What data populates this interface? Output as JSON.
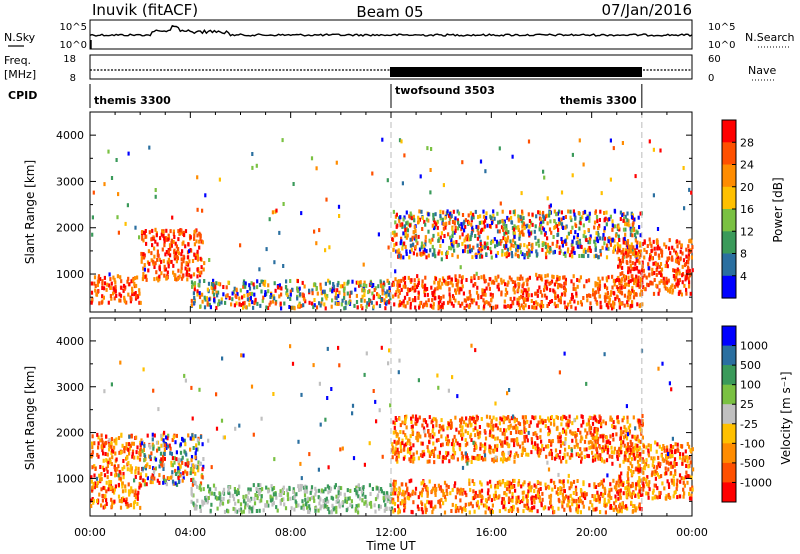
{
  "header": {
    "site": "Inuvik (fitACF)",
    "beam": "Beam 05",
    "date": "07/Jan/2016"
  },
  "noise_panel": {
    "left_label": "N.Sky",
    "right_label": "N.Search",
    "left_ticks": [
      "10^5",
      "10^0"
    ],
    "right_ticks": [
      "10^5",
      "10^0"
    ]
  },
  "freq_panel": {
    "left_label_1": "Freq.",
    "left_label_2": "[MHz]",
    "right_label": "Nave",
    "left_ticks": [
      "18",
      "8"
    ],
    "right_ticks": [
      "60",
      "0"
    ]
  },
  "cpid": {
    "label": "CPID",
    "segments": [
      {
        "name": "themis 3300",
        "start": 0,
        "end": 12
      },
      {
        "name": "twofsound 3503",
        "start": 12,
        "end": 22
      },
      {
        "name": "themis 3300",
        "start": 22,
        "end": 24
      }
    ]
  },
  "chart_data": [
    {
      "type": "heatmap",
      "parameter": "Power",
      "ylabel": "Slant Range [km]",
      "colorbar_label": "Power [dB]",
      "colorbar_ticks": [
        "28",
        "24",
        "20",
        "16",
        "12",
        "8",
        "4"
      ],
      "colorbar_colors": [
        "#ff0000",
        "#ff5000",
        "#ff8c00",
        "#ffc000",
        "#7ac142",
        "#3a9a5a",
        "#2a6fa0",
        "#0000ff"
      ],
      "x_range": [
        0,
        24
      ],
      "y_range": [
        180,
        4500
      ],
      "y_ticks": [
        1000,
        2000,
        3000,
        4000
      ],
      "regions": [
        {
          "x": [
            0,
            2
          ],
          "y": [
            400,
            1000
          ],
          "level": "high"
        },
        {
          "x": [
            2,
            4.5
          ],
          "y": [
            900,
            2000
          ],
          "level": "high"
        },
        {
          "x": [
            4,
            12
          ],
          "y": [
            300,
            900
          ],
          "level": "mixed"
        },
        {
          "x": [
            12,
            22
          ],
          "y": [
            300,
            1000
          ],
          "level": "high"
        },
        {
          "x": [
            12,
            22
          ],
          "y": [
            1400,
            2400
          ],
          "level": "mixed"
        },
        {
          "x": [
            21,
            24
          ],
          "y": [
            600,
            1800
          ],
          "level": "high"
        }
      ]
    },
    {
      "type": "heatmap",
      "parameter": "Velocity",
      "ylabel": "Slant Range [km]",
      "colorbar_label": "Velocity [m s⁻¹]",
      "colorbar_ticks": [
        "1000",
        "500",
        "100",
        "25",
        "-25",
        "-100",
        "-500",
        "-1000"
      ],
      "colorbar_colors": [
        "#0000ff",
        "#2a6fa0",
        "#3a9a5a",
        "#7ac142",
        "#c0c0c0",
        "#ffc000",
        "#ff8c00",
        "#ff5000",
        "#ff0000"
      ],
      "x_range": [
        0,
        24
      ],
      "y_range": [
        180,
        4500
      ],
      "y_ticks": [
        1000,
        2000,
        3000,
        4000
      ],
      "xlabel": "Time UT",
      "x_ticks": [
        "00:00",
        "04:00",
        "08:00",
        "12:00",
        "16:00",
        "20:00",
        "00:00"
      ],
      "regions": [
        {
          "x": [
            0,
            2
          ],
          "y": [
            400,
            2000
          ],
          "level": "negative"
        },
        {
          "x": [
            2,
            4.5
          ],
          "y": [
            900,
            2000
          ],
          "level": "mixed"
        },
        {
          "x": [
            4,
            12
          ],
          "y": [
            300,
            900
          ],
          "level": "ground-scatter"
        },
        {
          "x": [
            12,
            22
          ],
          "y": [
            300,
            1000
          ],
          "level": "negative"
        },
        {
          "x": [
            12,
            22
          ],
          "y": [
            1400,
            2400
          ],
          "level": "negative"
        },
        {
          "x": [
            21,
            24
          ],
          "y": [
            600,
            1800
          ],
          "level": "negative"
        }
      ]
    }
  ]
}
